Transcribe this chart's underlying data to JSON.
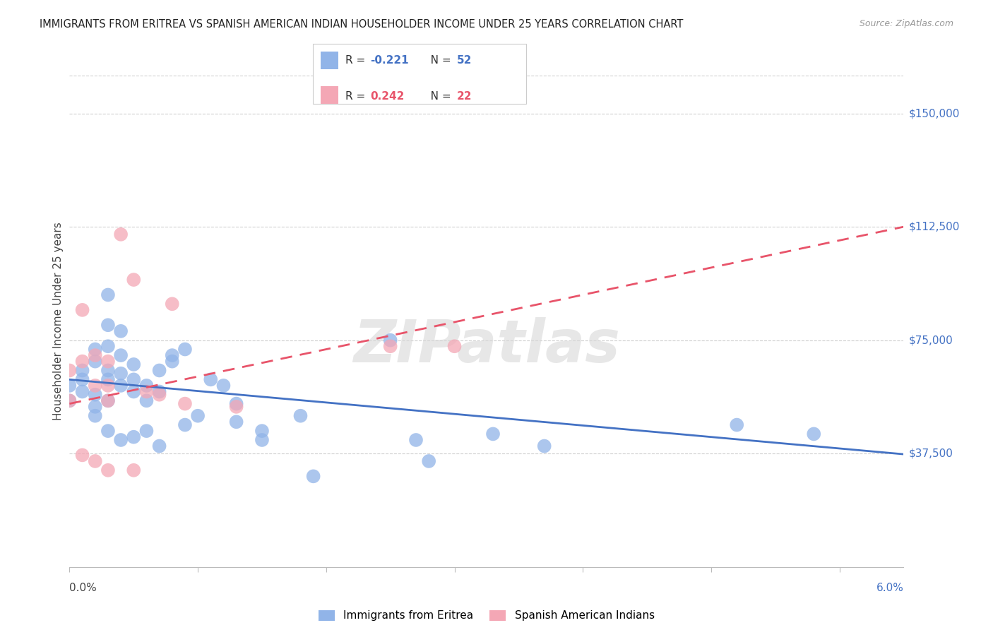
{
  "title": "IMMIGRANTS FROM ERITREA VS SPANISH AMERICAN INDIAN HOUSEHOLDER INCOME UNDER 25 YEARS CORRELATION CHART",
  "source": "Source: ZipAtlas.com",
  "ylabel": "Householder Income Under 25 years",
  "ytick_labels": [
    "$37,500",
    "$75,000",
    "$112,500",
    "$150,000"
  ],
  "ytick_values": [
    37500,
    75000,
    112500,
    150000
  ],
  "ylim": [
    0,
    162500
  ],
  "xlim": [
    0.0,
    0.065
  ],
  "blue_R": "-0.221",
  "blue_N": "52",
  "pink_R": "0.242",
  "pink_N": "22",
  "legend_label1": "Immigrants from Eritrea",
  "legend_label2": "Spanish American Indians",
  "blue_color": "#91b4e8",
  "pink_color": "#f4a7b5",
  "blue_line_color": "#4472c4",
  "pink_line_color": "#e8546a",
  "watermark": "ZIPatlas",
  "background_color": "#ffffff",
  "grid_color": "#d0d0d0",
  "blue_x": [
    0.0,
    0.0,
    0.001,
    0.001,
    0.001,
    0.002,
    0.002,
    0.002,
    0.002,
    0.002,
    0.003,
    0.003,
    0.003,
    0.003,
    0.003,
    0.003,
    0.003,
    0.004,
    0.004,
    0.004,
    0.004,
    0.004,
    0.005,
    0.005,
    0.005,
    0.005,
    0.006,
    0.006,
    0.006,
    0.007,
    0.007,
    0.007,
    0.008,
    0.008,
    0.009,
    0.009,
    0.01,
    0.011,
    0.012,
    0.013,
    0.013,
    0.015,
    0.015,
    0.018,
    0.019,
    0.025,
    0.027,
    0.028,
    0.033,
    0.037,
    0.052,
    0.058
  ],
  "blue_y": [
    60000,
    55000,
    62000,
    58000,
    65000,
    72000,
    68000,
    57000,
    53000,
    50000,
    90000,
    80000,
    73000,
    65000,
    62000,
    55000,
    45000,
    78000,
    70000,
    64000,
    60000,
    42000,
    67000,
    62000,
    58000,
    43000,
    60000,
    55000,
    45000,
    65000,
    58000,
    40000,
    70000,
    68000,
    72000,
    47000,
    50000,
    62000,
    60000,
    54000,
    48000,
    45000,
    42000,
    50000,
    30000,
    75000,
    42000,
    35000,
    44000,
    40000,
    47000,
    44000
  ],
  "pink_x": [
    0.0,
    0.0,
    0.001,
    0.001,
    0.001,
    0.002,
    0.002,
    0.002,
    0.003,
    0.003,
    0.003,
    0.003,
    0.004,
    0.005,
    0.005,
    0.006,
    0.007,
    0.008,
    0.009,
    0.013,
    0.025,
    0.03
  ],
  "pink_y": [
    65000,
    55000,
    85000,
    68000,
    37000,
    70000,
    60000,
    35000,
    68000,
    60000,
    55000,
    32000,
    110000,
    95000,
    32000,
    58000,
    57000,
    87000,
    54000,
    53000,
    73000,
    73000
  ],
  "blue_intercept": 62000,
  "blue_slope": -380000,
  "pink_intercept": 54000,
  "pink_slope": 900000,
  "xtick_positions": [
    0.0,
    0.01,
    0.02,
    0.03,
    0.04,
    0.05,
    0.06
  ]
}
